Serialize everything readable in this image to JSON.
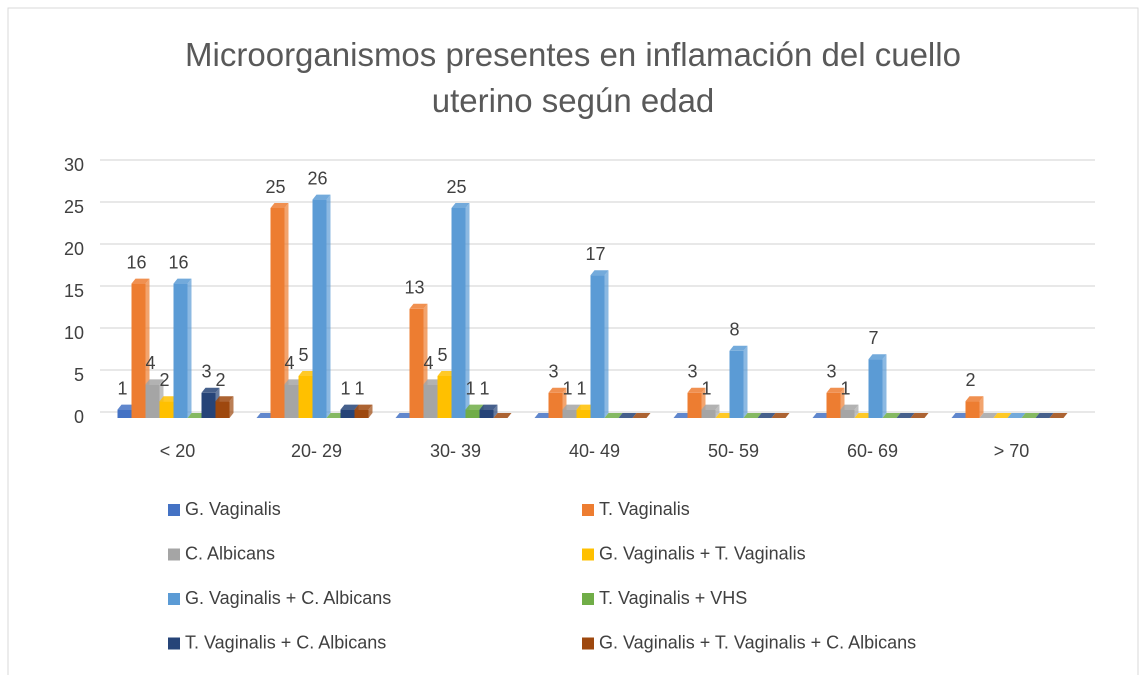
{
  "chart_data": {
    "type": "bar",
    "title": "Microorganismos presentes en inflamación del cuello uterino según edad",
    "categories": [
      "< 20",
      "20- 29",
      "30- 39",
      "40- 49",
      "50- 59",
      "60- 69",
      "> 70"
    ],
    "series": [
      {
        "name": "G. Vaginalis",
        "color": "#4472c4",
        "values": [
          1,
          0,
          0,
          0,
          0,
          0,
          0
        ]
      },
      {
        "name": "T. Vaginalis",
        "color": "#ed7d31",
        "values": [
          16,
          25,
          13,
          3,
          3,
          3,
          2
        ]
      },
      {
        "name": "C. Albicans",
        "color": "#a5a5a5",
        "values": [
          4,
          4,
          4,
          1,
          1,
          1,
          0
        ]
      },
      {
        "name": "G. Vaginalis + T. Vaginalis",
        "color": "#ffc000",
        "values": [
          2,
          5,
          5,
          1,
          0,
          0,
          0
        ]
      },
      {
        "name": "G. Vaginalis + C. Albicans",
        "color": "#5b9bd5",
        "values": [
          16,
          26,
          25,
          17,
          8,
          7,
          0
        ]
      },
      {
        "name": "T. Vaginalis + VHS",
        "color": "#70ad47",
        "values": [
          0,
          0,
          1,
          0,
          0,
          0,
          0
        ]
      },
      {
        "name": "T. Vaginalis + C. Albicans",
        "color": "#264478",
        "values": [
          3,
          1,
          1,
          0,
          0,
          0,
          0
        ]
      },
      {
        "name": "G. Vaginalis + T. Vaginalis +  C. Albicans",
        "color": "#9e480e",
        "values": [
          2,
          1,
          0,
          0,
          0,
          0,
          0
        ]
      }
    ],
    "ylim": [
      0,
      30
    ],
    "yticks": [
      0,
      5,
      10,
      15,
      20,
      25,
      30
    ],
    "grid": true,
    "legend": "bottom"
  }
}
